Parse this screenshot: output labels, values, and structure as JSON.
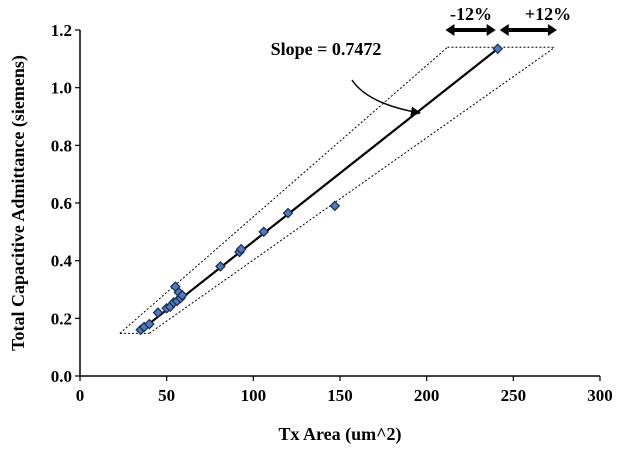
{
  "chart_data": {
    "type": "scatter",
    "xlabel": "Tx Area (um^2)",
    "ylabel": "Total Capacitive Admittance (siemens)",
    "xlim": [
      0,
      300
    ],
    "ylim": [
      0,
      1.2
    ],
    "x_ticks": [
      0,
      50,
      100,
      150,
      200,
      250,
      300
    ],
    "y_ticks": [
      0.0,
      0.2,
      0.4,
      0.6,
      0.8,
      1.0,
      1.2
    ],
    "x_tick_labels": [
      "0",
      "50",
      "100",
      "150",
      "200",
      "250",
      "300"
    ],
    "y_tick_labels": [
      "0.0",
      "0.2",
      "0.4",
      "0.6",
      "0.8",
      "1.0",
      "1.2"
    ],
    "grid": false,
    "marker_color": "#4a7bc4",
    "marker_edge_color": "#1a2a4a",
    "points": [
      {
        "x": 35,
        "y": 0.16
      },
      {
        "x": 37,
        "y": 0.17
      },
      {
        "x": 40,
        "y": 0.18
      },
      {
        "x": 45,
        "y": 0.22
      },
      {
        "x": 50,
        "y": 0.235
      },
      {
        "x": 52,
        "y": 0.24
      },
      {
        "x": 54,
        "y": 0.255
      },
      {
        "x": 55,
        "y": 0.31
      },
      {
        "x": 56,
        "y": 0.26
      },
      {
        "x": 57,
        "y": 0.29
      },
      {
        "x": 58,
        "y": 0.27
      },
      {
        "x": 59,
        "y": 0.28
      },
      {
        "x": 81,
        "y": 0.38
      },
      {
        "x": 92,
        "y": 0.43
      },
      {
        "x": 93,
        "y": 0.44
      },
      {
        "x": 106,
        "y": 0.5
      },
      {
        "x": 120,
        "y": 0.565
      },
      {
        "x": 147,
        "y": 0.59
      },
      {
        "x": 241,
        "y": 1.135
      }
    ],
    "fit_line": {
      "x1": 35,
      "y1": 0.158,
      "x2": 241,
      "y2": 1.135
    },
    "band_upper": {
      "x1": 23,
      "y1": 0.148,
      "x2": 212,
      "y2": 1.14
    },
    "band_lower": {
      "x1": 40,
      "y1": 0.148,
      "x2": 274,
      "y2": 1.14
    },
    "annotations": {
      "slope_label": "Slope = 0.7472",
      "minus_label": "-12%",
      "plus_label": "+12%"
    }
  }
}
